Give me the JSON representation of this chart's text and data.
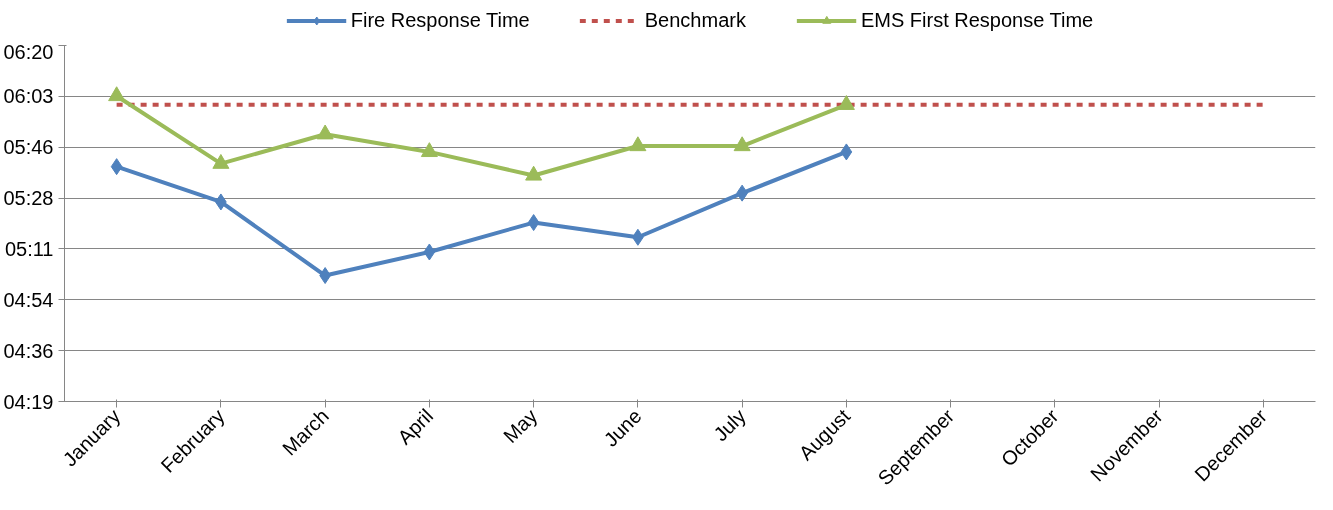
{
  "chart_data": {
    "type": "line",
    "categories": [
      "January",
      "February",
      "March",
      "April",
      "May",
      "June",
      "July",
      "August",
      "September",
      "October",
      "November",
      "December"
    ],
    "series": [
      {
        "name": "Fire Response Time",
        "color": "#4f81bd",
        "marker": "diamond",
        "line_style": "solid",
        "values": [
          339,
          327,
          302,
          310,
          320,
          315,
          330,
          344,
          null,
          null,
          null,
          null
        ]
      },
      {
        "name": "Benchmark",
        "color": "#c0504d",
        "marker": "none",
        "line_style": "dashed",
        "values": [
          360,
          360,
          360,
          360,
          360,
          360,
          360,
          360,
          360,
          360,
          360,
          360
        ]
      },
      {
        "name": "EMS First Response Time",
        "color": "#9bbb59",
        "marker": "triangle",
        "line_style": "solid",
        "values": [
          363,
          340,
          350,
          344,
          336,
          346,
          346,
          360,
          null,
          null,
          null,
          null
        ]
      }
    ],
    "ylim": [
      259.2,
      380.16
    ],
    "yticks": [
      {
        "value": 259.2,
        "label": "04:19"
      },
      {
        "value": 276.48,
        "label": "04:36"
      },
      {
        "value": 293.76,
        "label": "04:54"
      },
      {
        "value": 311.04,
        "label": "05:11"
      },
      {
        "value": 328.32,
        "label": "05:28"
      },
      {
        "value": 345.6,
        "label": "05:46"
      },
      {
        "value": 362.88,
        "label": "06:03"
      },
      {
        "value": 380.16,
        "label": "06:20"
      }
    ],
    "grid": "y",
    "legend": "top"
  }
}
